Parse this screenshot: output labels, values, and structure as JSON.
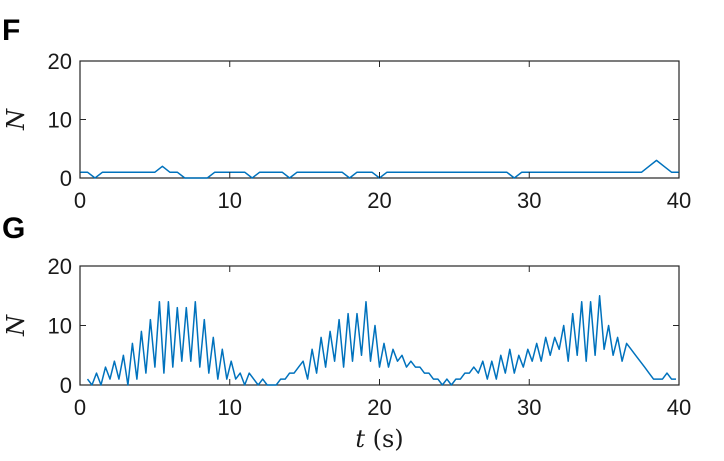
{
  "panels": [
    {
      "letter": "F"
    },
    {
      "letter": "G"
    }
  ],
  "colors": {
    "series": "#0072BD",
    "axes": "#262626"
  },
  "chart_data": [
    {
      "type": "line",
      "panel": "F",
      "title": "",
      "xlabel": "",
      "ylabel": "N",
      "xlim": [
        0,
        40
      ],
      "ylim": [
        0,
        20
      ],
      "xticks": [
        0,
        10,
        20,
        30,
        40
      ],
      "yticks": [
        0,
        10,
        20
      ],
      "grid": false,
      "series": [
        {
          "x": [
            0,
            0.5,
            1,
            1.5,
            2,
            2.5,
            3,
            3.5,
            4,
            4.5,
            5,
            5.5,
            6,
            6.5,
            7,
            7.5,
            8,
            8.5,
            9,
            9.5,
            10,
            10.5,
            11,
            11.5,
            12,
            12.5,
            13,
            13.5,
            14,
            14.5,
            15,
            15.5,
            16,
            16.5,
            17,
            17.5,
            18,
            18.5,
            19,
            19.5,
            20,
            20.5,
            21,
            21.5,
            22,
            22.5,
            23,
            23.5,
            24,
            24.5,
            25,
            25.5,
            26,
            26.5,
            27,
            27.5,
            28,
            28.5,
            29,
            29.5,
            30,
            30.5,
            31,
            31.5,
            32,
            32.5,
            33,
            33.5,
            34,
            34.5,
            35,
            35.5,
            36,
            36.5,
            37,
            37.5,
            38,
            38.5,
            39,
            39.5,
            40
          ],
          "values": [
            1,
            1,
            0,
            1,
            1,
            1,
            1,
            1,
            1,
            1,
            1,
            2,
            1,
            1,
            0,
            0,
            0,
            0,
            1,
            1,
            1,
            1,
            1,
            0,
            1,
            1,
            1,
            1,
            0,
            1,
            1,
            1,
            1,
            1,
            1,
            1,
            0,
            1,
            1,
            1,
            0,
            1,
            1,
            1,
            1,
            1,
            1,
            1,
            1,
            1,
            1,
            1,
            1,
            1,
            1,
            1,
            1,
            1,
            0,
            1,
            1,
            1,
            1,
            1,
            1,
            1,
            1,
            1,
            1,
            1,
            1,
            1,
            1,
            1,
            1,
            1,
            2,
            3,
            2,
            1,
            1
          ]
        }
      ]
    },
    {
      "type": "line",
      "panel": "G",
      "title": "",
      "xlabel": "t (s)",
      "ylabel": "N",
      "xlim": [
        0,
        40
      ],
      "ylim": [
        0,
        20
      ],
      "xticks": [
        0,
        10,
        20,
        30,
        40
      ],
      "yticks": [
        0,
        10,
        20
      ],
      "grid": false,
      "series": [
        {
          "x": [
            0.5,
            0.8,
            1.1,
            1.4,
            1.7,
            2.0,
            2.3,
            2.6,
            2.9,
            3.2,
            3.5,
            3.8,
            4.1,
            4.4,
            4.7,
            5.0,
            5.3,
            5.6,
            5.9,
            6.2,
            6.5,
            6.8,
            7.1,
            7.4,
            7.7,
            8.0,
            8.3,
            8.6,
            8.9,
            9.2,
            9.5,
            9.8,
            10.1,
            10.4,
            10.7,
            11.0,
            11.3,
            11.6,
            11.9,
            12.2,
            12.5,
            12.8,
            13.1,
            13.4,
            13.7,
            14.0,
            14.3,
            14.6,
            14.9,
            15.2,
            15.5,
            15.8,
            16.1,
            16.4,
            16.7,
            17.0,
            17.3,
            17.6,
            17.9,
            18.2,
            18.5,
            18.8,
            19.1,
            19.4,
            19.7,
            20.0,
            20.3,
            20.6,
            20.9,
            21.2,
            21.5,
            21.8,
            22.1,
            22.4,
            22.7,
            23.0,
            23.3,
            23.6,
            23.9,
            24.2,
            24.5,
            24.8,
            25.1,
            25.4,
            25.7,
            26.0,
            26.3,
            26.6,
            26.9,
            27.2,
            27.5,
            27.8,
            28.1,
            28.4,
            28.7,
            29.0,
            29.3,
            29.6,
            29.9,
            30.2,
            30.5,
            30.8,
            31.1,
            31.4,
            31.7,
            32.0,
            32.3,
            32.6,
            32.9,
            33.2,
            33.5,
            33.8,
            34.1,
            34.4,
            34.7,
            35.0,
            35.3,
            35.6,
            35.9,
            36.2,
            36.5,
            36.8,
            37.1,
            37.4,
            37.7,
            38.0,
            38.3,
            38.6,
            38.9,
            39.2,
            39.5,
            39.8
          ],
          "values": [
            1,
            0,
            2,
            0,
            3,
            1,
            4,
            1,
            5,
            0,
            7,
            1,
            9,
            2,
            11,
            3,
            14,
            2,
            14,
            3,
            13,
            4,
            13,
            4,
            14,
            3,
            11,
            2,
            8,
            1,
            6,
            1,
            4,
            1,
            2,
            0,
            2,
            1,
            0,
            1,
            0,
            0,
            0,
            1,
            1,
            2,
            2,
            3,
            4,
            1,
            6,
            2,
            8,
            3,
            9,
            4,
            11,
            3,
            12,
            4,
            12,
            5,
            14,
            4,
            10,
            3,
            7,
            3,
            6,
            4,
            5,
            3,
            4,
            3,
            3,
            2,
            2,
            1,
            1,
            0,
            1,
            0,
            1,
            1,
            2,
            2,
            3,
            2,
            4,
            1,
            4,
            1,
            5,
            2,
            6,
            2,
            5,
            3,
            6,
            4,
            7,
            4,
            8,
            5,
            8,
            6,
            10,
            4,
            12,
            5,
            14,
            4,
            14,
            5,
            15,
            6,
            10,
            5,
            8,
            4,
            7,
            6,
            5,
            4,
            3,
            2,
            1,
            1,
            1,
            2,
            1,
            1
          ]
        }
      ]
    }
  ]
}
